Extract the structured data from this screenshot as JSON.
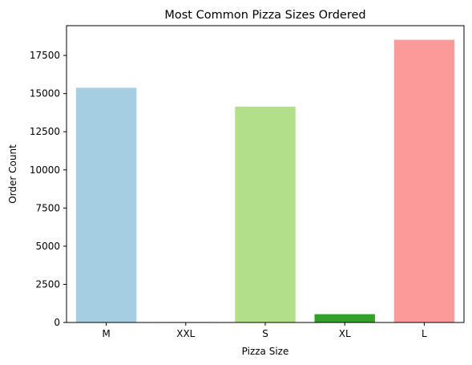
{
  "chart_data": {
    "type": "bar",
    "title": "Most Common Pizza Sizes Ordered",
    "xlabel": "Pizza Size",
    "ylabel": "Order Count",
    "categories": [
      "M",
      "XXL",
      "S",
      "XL",
      "L"
    ],
    "values": [
      15385,
      28,
      14137,
      544,
      18526
    ],
    "colors": [
      "#a6cee3",
      "#1f78b4",
      "#b2df8a",
      "#33a02c",
      "#fb9a99"
    ],
    "ylim": [
      0,
      19450
    ],
    "yticks": [
      0,
      2500,
      5000,
      7500,
      10000,
      12500,
      15000,
      17500
    ],
    "grid": false,
    "legend": "none"
  }
}
